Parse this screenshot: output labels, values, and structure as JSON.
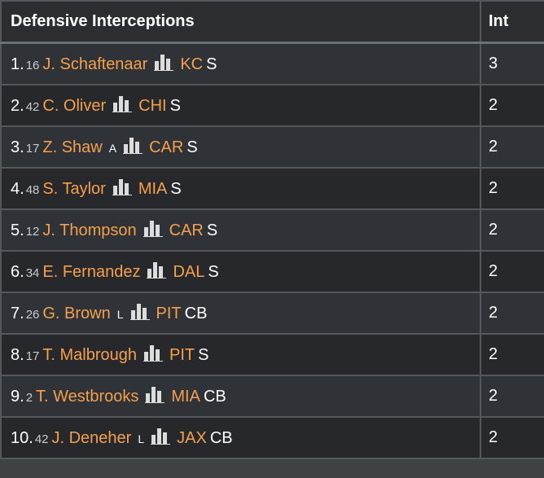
{
  "table": {
    "title": "Defensive Interceptions",
    "int_header": "Int",
    "rows": [
      {
        "rank": "1.",
        "number": "16",
        "player": "J. Schaftenaar",
        "tag": "",
        "team": "KC",
        "position": "S",
        "int": "3"
      },
      {
        "rank": "2.",
        "number": "42",
        "player": "C. Oliver",
        "tag": "",
        "team": "CHI",
        "position": "S",
        "int": "2"
      },
      {
        "rank": "3.",
        "number": "17",
        "player": "Z. Shaw",
        "tag": "A",
        "team": "CAR",
        "position": "S",
        "int": "2"
      },
      {
        "rank": "4.",
        "number": "48",
        "player": "S. Taylor",
        "tag": "",
        "team": "MIA",
        "position": "S",
        "int": "2"
      },
      {
        "rank": "5.",
        "number": "12",
        "player": "J. Thompson",
        "tag": "",
        "team": "CAR",
        "position": "S",
        "int": "2"
      },
      {
        "rank": "6.",
        "number": "34",
        "player": "E. Fernandez",
        "tag": "",
        "team": "DAL",
        "position": "S",
        "int": "2"
      },
      {
        "rank": "7.",
        "number": "26",
        "player": "G. Brown",
        "tag": "L",
        "team": "PIT",
        "position": "CB",
        "int": "2"
      },
      {
        "rank": "8.",
        "number": "17",
        "player": "T. Malbrough",
        "tag": "",
        "team": "PIT",
        "position": "S",
        "int": "2"
      },
      {
        "rank": "9.",
        "number": "2",
        "player": "T. Westbrooks",
        "tag": "",
        "team": "MIA",
        "position": "CB",
        "int": "2"
      },
      {
        "rank": "10.",
        "number": "42",
        "player": "J. Deneher",
        "tag": "L",
        "team": "JAX",
        "position": "CB",
        "int": "2"
      }
    ]
  },
  "colors": {
    "link": "#f5a04a",
    "header_background": "#2b2d30",
    "row_odd": "#2f3236",
    "row_even": "#26282b",
    "border": "#54585c"
  },
  "icons": {
    "stats": "bar-chart-icon"
  }
}
